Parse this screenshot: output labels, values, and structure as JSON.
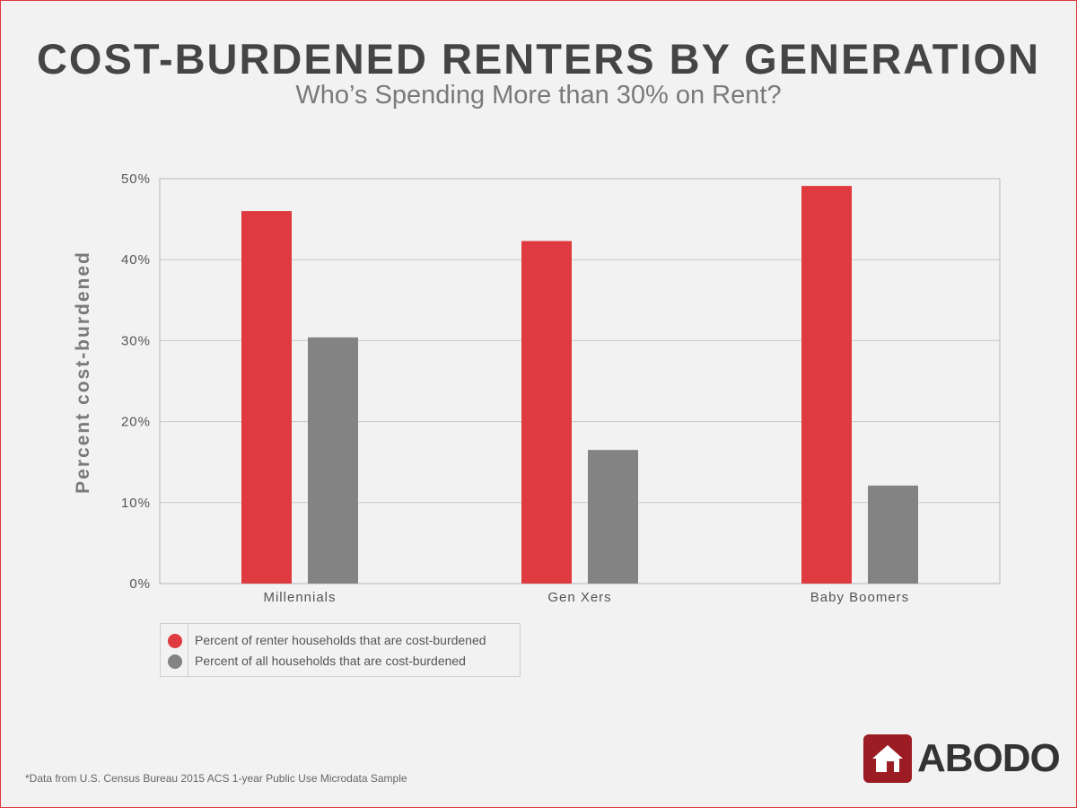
{
  "title": "COST-BURDENED RENTERS BY GENERATION",
  "subtitle": "Who’s Spending More than 30% on Rent?",
  "footnote": "*Data from U.S. Census Bureau 2015 ACS 1-year Public Use Microdata Sample",
  "logo": {
    "text": "ABODO",
    "icon": "house-icon",
    "color": "#9b1c22"
  },
  "frame_color": "#e0393e",
  "chart_data": {
    "type": "bar",
    "title": "COST-BURDENED RENTERS BY GENERATION",
    "subtitle": "Who’s Spending More than 30% on Rent?",
    "xlabel": "",
    "ylabel": "Percent cost-burdened",
    "ylim": [
      0,
      50
    ],
    "yticks": [
      "0%",
      "10%",
      "20%",
      "30%",
      "40%",
      "50%"
    ],
    "ytick_values": [
      0,
      10,
      20,
      30,
      40,
      50
    ],
    "grid": true,
    "categories": [
      "Millennials",
      "Gen Xers",
      "Baby Boomers"
    ],
    "legend_position": "bottom-left",
    "series": [
      {
        "name": "Percent of renter households that are cost-burdened",
        "color": "#de3a40",
        "values": [
          46.0,
          42.3,
          49.1
        ]
      },
      {
        "name": "Percent of all households that are cost-burdened",
        "color": "#838383",
        "values": [
          30.4,
          16.5,
          12.1
        ]
      }
    ]
  }
}
